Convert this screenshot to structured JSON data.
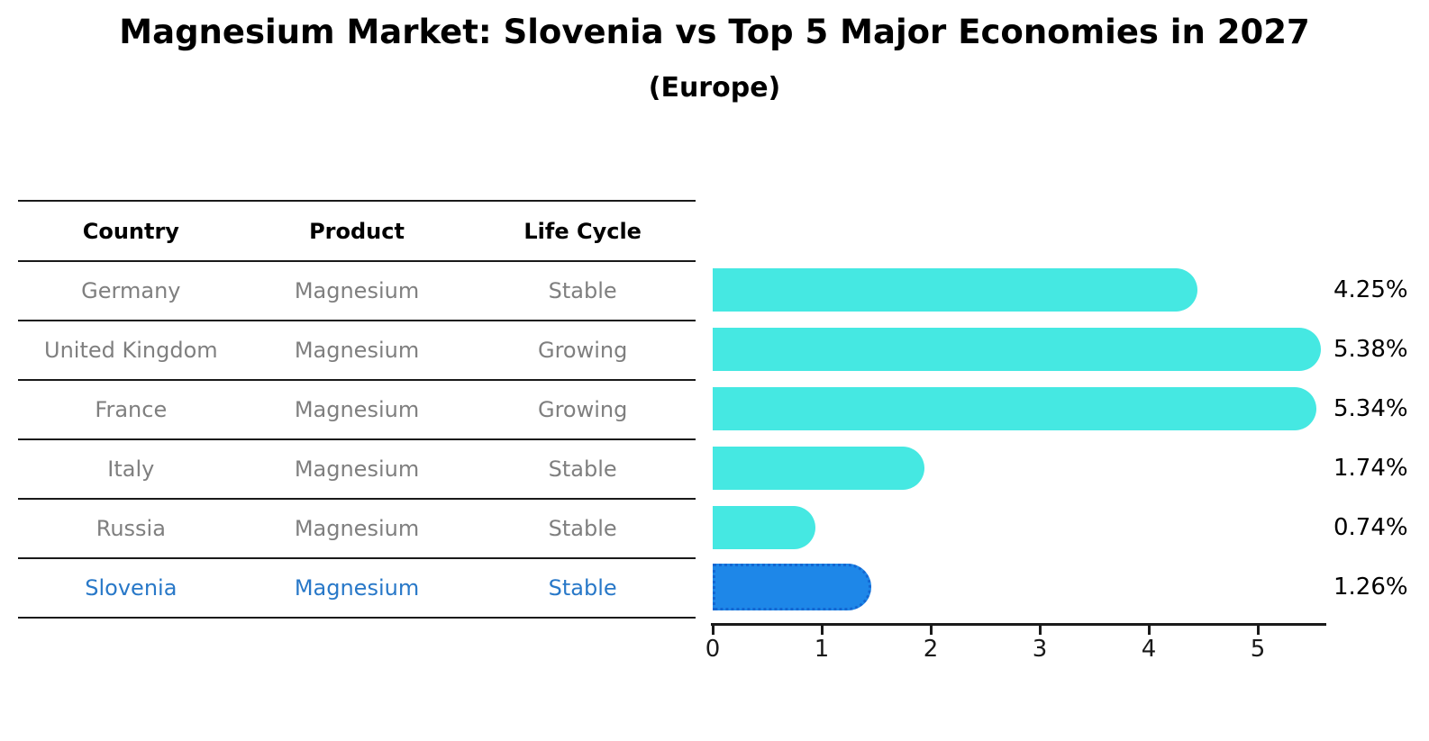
{
  "title": "Magnesium Market: Slovenia vs Top 5 Major Economies in 2027",
  "subtitle": "(Europe)",
  "table": {
    "headers": [
      "Country",
      "Product",
      "Life Cycle"
    ],
    "rows": [
      {
        "country": "Germany",
        "product": "Magnesium",
        "life_cycle": "Stable",
        "highlighted": false
      },
      {
        "country": "United Kingdom",
        "product": "Magnesium",
        "life_cycle": "Growing",
        "highlighted": false
      },
      {
        "country": "France",
        "product": "Magnesium",
        "life_cycle": "Growing",
        "highlighted": false
      },
      {
        "country": "Italy",
        "product": "Magnesium",
        "life_cycle": "Stable",
        "highlighted": false
      },
      {
        "country": "Russia",
        "product": "Magnesium",
        "life_cycle": "Stable",
        "highlighted": false
      },
      {
        "country": "Slovenia",
        "product": "Magnesium",
        "life_cycle": "Stable",
        "highlighted": true
      }
    ]
  },
  "chart_data": {
    "type": "bar",
    "orientation": "horizontal",
    "categories": [
      "Germany",
      "United Kingdom",
      "France",
      "Italy",
      "Russia",
      "Slovenia"
    ],
    "values": [
      4.25,
      5.38,
      5.34,
      1.74,
      0.74,
      1.26
    ],
    "value_labels": [
      "4.25%",
      "5.38%",
      "5.34%",
      "1.74%",
      "0.74%",
      "1.26%"
    ],
    "highlight_index": 5,
    "x_ticks": [
      0,
      1,
      2,
      3,
      4,
      5
    ],
    "xlim": [
      0,
      5.6
    ],
    "grid": false,
    "legend": false
  },
  "colors": {
    "bar": "#45E8E2",
    "highlight_bar": "#1E87E8",
    "highlight_bar_border": "#1467D2",
    "highlight_text": "#2878C8",
    "row_text": "#7F7F7F",
    "axis": "#1a1a1a"
  }
}
